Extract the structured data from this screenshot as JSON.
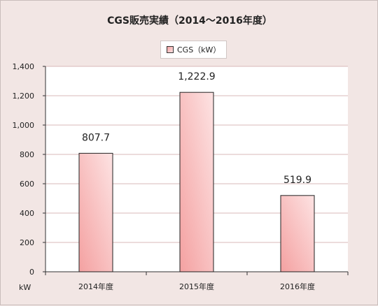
{
  "chart_data": {
    "type": "bar",
    "title": "CGS販売実績（2014～2016年度）",
    "categories": [
      "2014年度",
      "2015年度",
      "2016年度"
    ],
    "series": [
      {
        "name": "CGS（kW）",
        "values": [
          807.7,
          1222.9,
          519.9
        ]
      }
    ],
    "value_labels": [
      "807.7",
      "1,222.9",
      "519.9"
    ],
    "ylabel": "kW",
    "ylim": [
      0,
      1400
    ],
    "yticks": [
      0,
      200,
      400,
      600,
      800,
      1000,
      1200,
      1400
    ],
    "ytick_labels": [
      "0",
      "200",
      "400",
      "600",
      "800",
      "1,000",
      "1,200",
      "1,400"
    ],
    "grid": true,
    "legend_position": "top-center",
    "colors": {
      "bar_dark": "#f4a1a1",
      "bar_light": "#fde3e3",
      "grid": "#d9b8b8",
      "plot_bg": "#ffffff"
    }
  }
}
